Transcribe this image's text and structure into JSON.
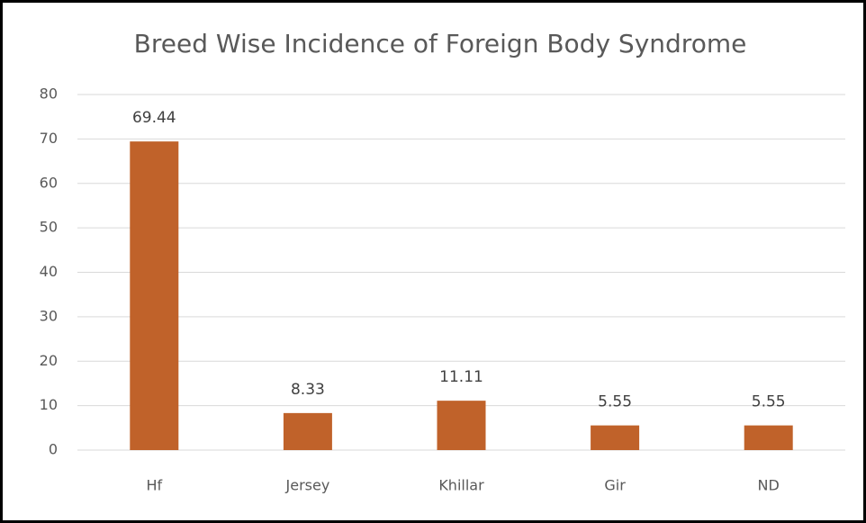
{
  "chart_data": {
    "type": "bar",
    "title": "Breed Wise Incidence of Foreign Body Syndrome",
    "categories": [
      "Hf",
      "Jersey",
      "Khillar",
      "Gir",
      "ND"
    ],
    "values": [
      69.44,
      8.33,
      11.11,
      5.55,
      5.55
    ],
    "color": "#c0622a",
    "ylim": [
      0,
      80
    ],
    "yticks": [
      0,
      10,
      20,
      30,
      40,
      50,
      60,
      70,
      80
    ],
    "grid": true
  }
}
